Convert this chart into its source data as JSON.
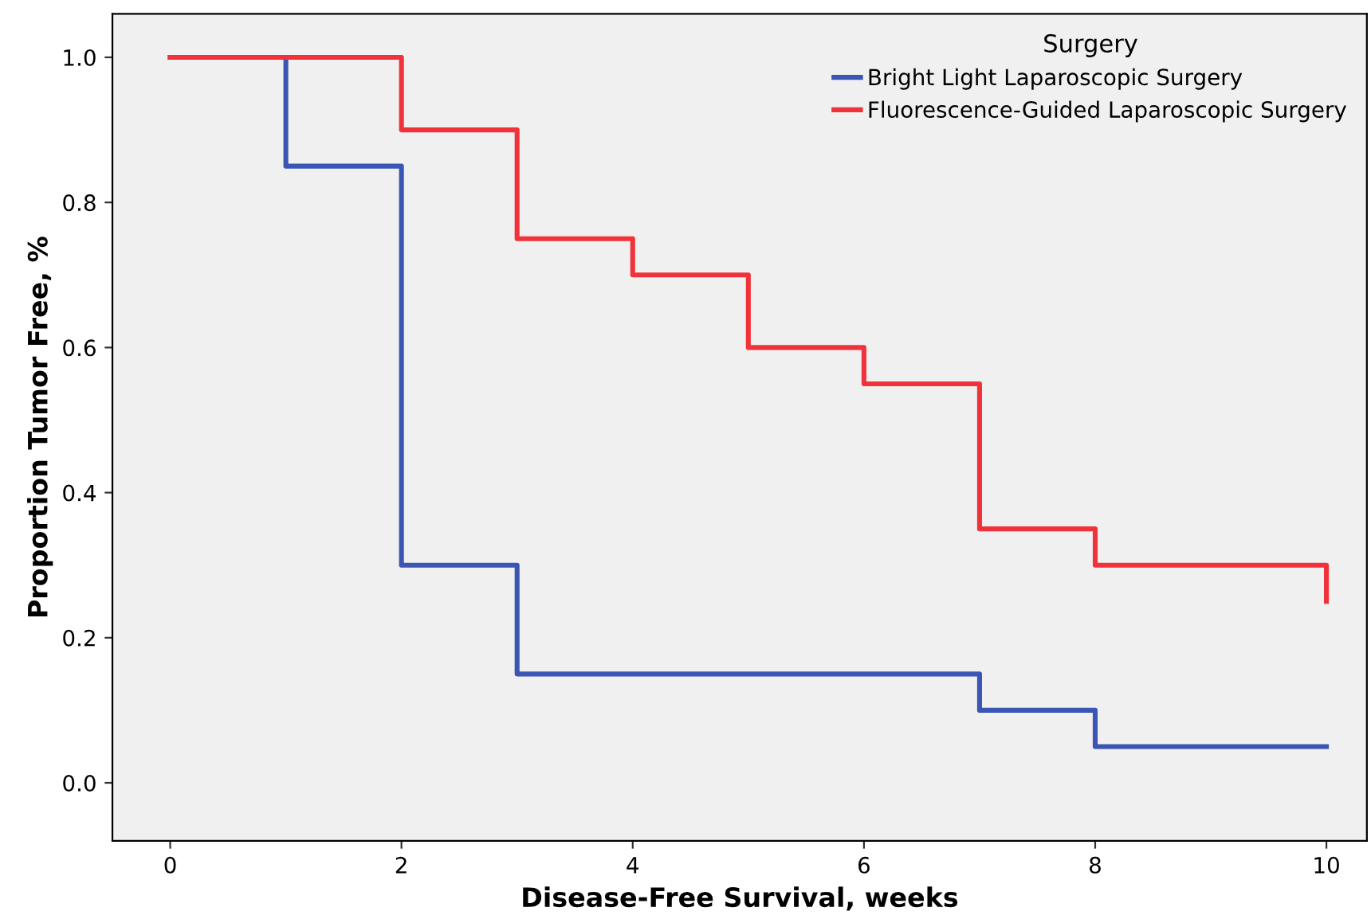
{
  "chart_data": {
    "type": "step",
    "xlabel": "Disease-Free Survival, weeks",
    "ylabel": "Proportion Tumor Free, %",
    "legend_title": "Surgery",
    "legend": "top right",
    "grid": false,
    "xlim": [
      -0.5,
      10.35
    ],
    "ylim": [
      -0.08,
      1.06
    ],
    "xticks": [
      0,
      2,
      4,
      6,
      8,
      10
    ],
    "yticks": [
      {
        "value": 0,
        "label": "0.0"
      },
      0.2,
      0.4,
      0.6,
      0.8,
      {
        "value": 1,
        "label": "1.0"
      }
    ],
    "series": [
      {
        "name": "Bright Light Laparoscopic Surgery",
        "color": "#3a55b4",
        "x": [
          0,
          1,
          2,
          3,
          7,
          8,
          10
        ],
        "values": [
          1.0,
          0.85,
          0.3,
          0.15,
          0.1,
          0.05,
          0.05
        ]
      },
      {
        "name": "Fluorescence-Guided Laparoscopic Surgery",
        "color": "#f0333a",
        "x": [
          0,
          2,
          3,
          4,
          5,
          6,
          7,
          8,
          10,
          10
        ],
        "values": [
          1.0,
          0.9,
          0.75,
          0.7,
          0.6,
          0.55,
          0.35,
          0.3,
          0.3,
          0.25
        ]
      }
    ]
  }
}
